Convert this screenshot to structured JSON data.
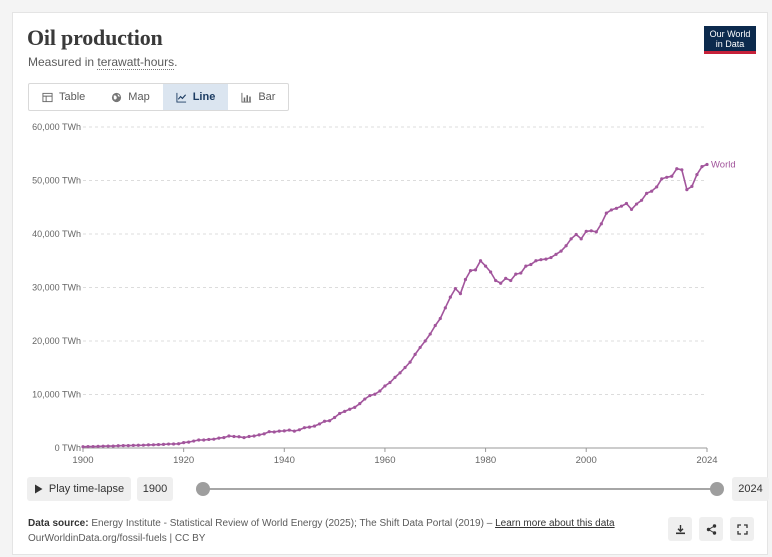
{
  "header": {
    "title": "Oil production",
    "subtitle_prefix": "Measured in ",
    "subtitle_unit": "terawatt-hours",
    "subtitle_suffix": ".",
    "logo_line1": "Our World",
    "logo_line2": "in Data"
  },
  "tabs": [
    {
      "label": "Table",
      "icon": "table-icon"
    },
    {
      "label": "Map",
      "icon": "globe-icon"
    },
    {
      "label": "Line",
      "icon": "line-chart-icon",
      "active": true
    },
    {
      "label": "Bar",
      "icon": "bar-chart-icon"
    }
  ],
  "timeline": {
    "play_label": "Play time-lapse",
    "start_year": "1900",
    "end_year": "2024"
  },
  "footer": {
    "source_label": "Data source:",
    "source_text": "Energy Institute - Statistical Review of World Energy (2025); The Shift Data Portal (2019) – ",
    "learn_more": "Learn more about this data",
    "credit": "OurWorldinData.org/fossil-fuels | CC BY"
  },
  "colors": {
    "series": "#a2559c",
    "accent": "#0c2a4d",
    "logo_stripe": "#c6213a"
  },
  "chart_data": {
    "type": "line",
    "title": "Oil production",
    "ylabel": "",
    "xlabel": "",
    "xlim": [
      1900,
      2024
    ],
    "ylim": [
      0,
      60000
    ],
    "yticks": [
      0,
      10000,
      20000,
      30000,
      40000,
      50000,
      60000
    ],
    "ytick_labels": [
      "0 TWh",
      "10,000 TWh",
      "20,000 TWh",
      "30,000 TWh",
      "40,000 TWh",
      "50,000 TWh",
      "60,000 TWh"
    ],
    "xticks": [
      1900,
      1920,
      1940,
      1960,
      1980,
      2000,
      2024
    ],
    "xtick_labels": [
      "1900",
      "1920",
      "1940",
      "1960",
      "1980",
      "2000",
      "2024"
    ],
    "grid": "horizontal dashed",
    "series": [
      {
        "name": "World",
        "x": [
          1900,
          1901,
          1902,
          1903,
          1904,
          1905,
          1906,
          1907,
          1908,
          1909,
          1910,
          1911,
          1912,
          1913,
          1914,
          1915,
          1916,
          1917,
          1918,
          1919,
          1920,
          1921,
          1922,
          1923,
          1924,
          1925,
          1926,
          1927,
          1928,
          1929,
          1930,
          1931,
          1932,
          1933,
          1934,
          1935,
          1936,
          1937,
          1938,
          1939,
          1940,
          1941,
          1942,
          1943,
          1944,
          1945,
          1946,
          1947,
          1948,
          1949,
          1950,
          1951,
          1952,
          1953,
          1954,
          1955,
          1956,
          1957,
          1958,
          1959,
          1960,
          1961,
          1962,
          1963,
          1964,
          1965,
          1966,
          1967,
          1968,
          1969,
          1970,
          1971,
          1972,
          1973,
          1974,
          1975,
          1976,
          1977,
          1978,
          1979,
          1980,
          1981,
          1982,
          1983,
          1984,
          1985,
          1986,
          1987,
          1988,
          1989,
          1990,
          1991,
          1992,
          1993,
          1994,
          1995,
          1996,
          1997,
          1998,
          1999,
          2000,
          2001,
          2002,
          2003,
          2004,
          2005,
          2006,
          2007,
          2008,
          2009,
          2010,
          2011,
          2012,
          2013,
          2014,
          2015,
          2016,
          2017,
          2018,
          2019,
          2020,
          2021,
          2022,
          2023,
          2024
        ],
        "y": [
          230,
          260,
          270,
          300,
          340,
          350,
          360,
          420,
          440,
          450,
          490,
          510,
          530,
          580,
          600,
          640,
          680,
          740,
          750,
          790,
          1000,
          1100,
          1300,
          1500,
          1500,
          1600,
          1650,
          1850,
          1950,
          2250,
          2150,
          2100,
          1950,
          2150,
          2250,
          2450,
          2650,
          3050,
          3000,
          3150,
          3200,
          3350,
          3150,
          3400,
          3800,
          3900,
          4100,
          4500,
          5000,
          5100,
          5700,
          6450,
          6850,
          7250,
          7600,
          8300,
          9150,
          9800,
          10050,
          10650,
          11600,
          12250,
          13200,
          14050,
          15050,
          16050,
          17500,
          18800,
          20000,
          21300,
          22900,
          24200,
          26200,
          28200,
          29800,
          28850,
          31500,
          33150,
          33300,
          35000,
          34000,
          32900,
          31300,
          30800,
          31700,
          31300,
          32500,
          32700,
          34000,
          34300,
          35000,
          35200,
          35300,
          35600,
          36200,
          36800,
          37800,
          39100,
          39900,
          39100,
          40500,
          40600,
          40400,
          41900,
          43900,
          44500,
          44800,
          45200,
          45700,
          44600,
          45600,
          46300,
          47600,
          48000,
          48800,
          50300,
          50600,
          50800,
          52200,
          52000,
          48300,
          48900,
          51100,
          52600,
          53000
        ]
      }
    ]
  }
}
